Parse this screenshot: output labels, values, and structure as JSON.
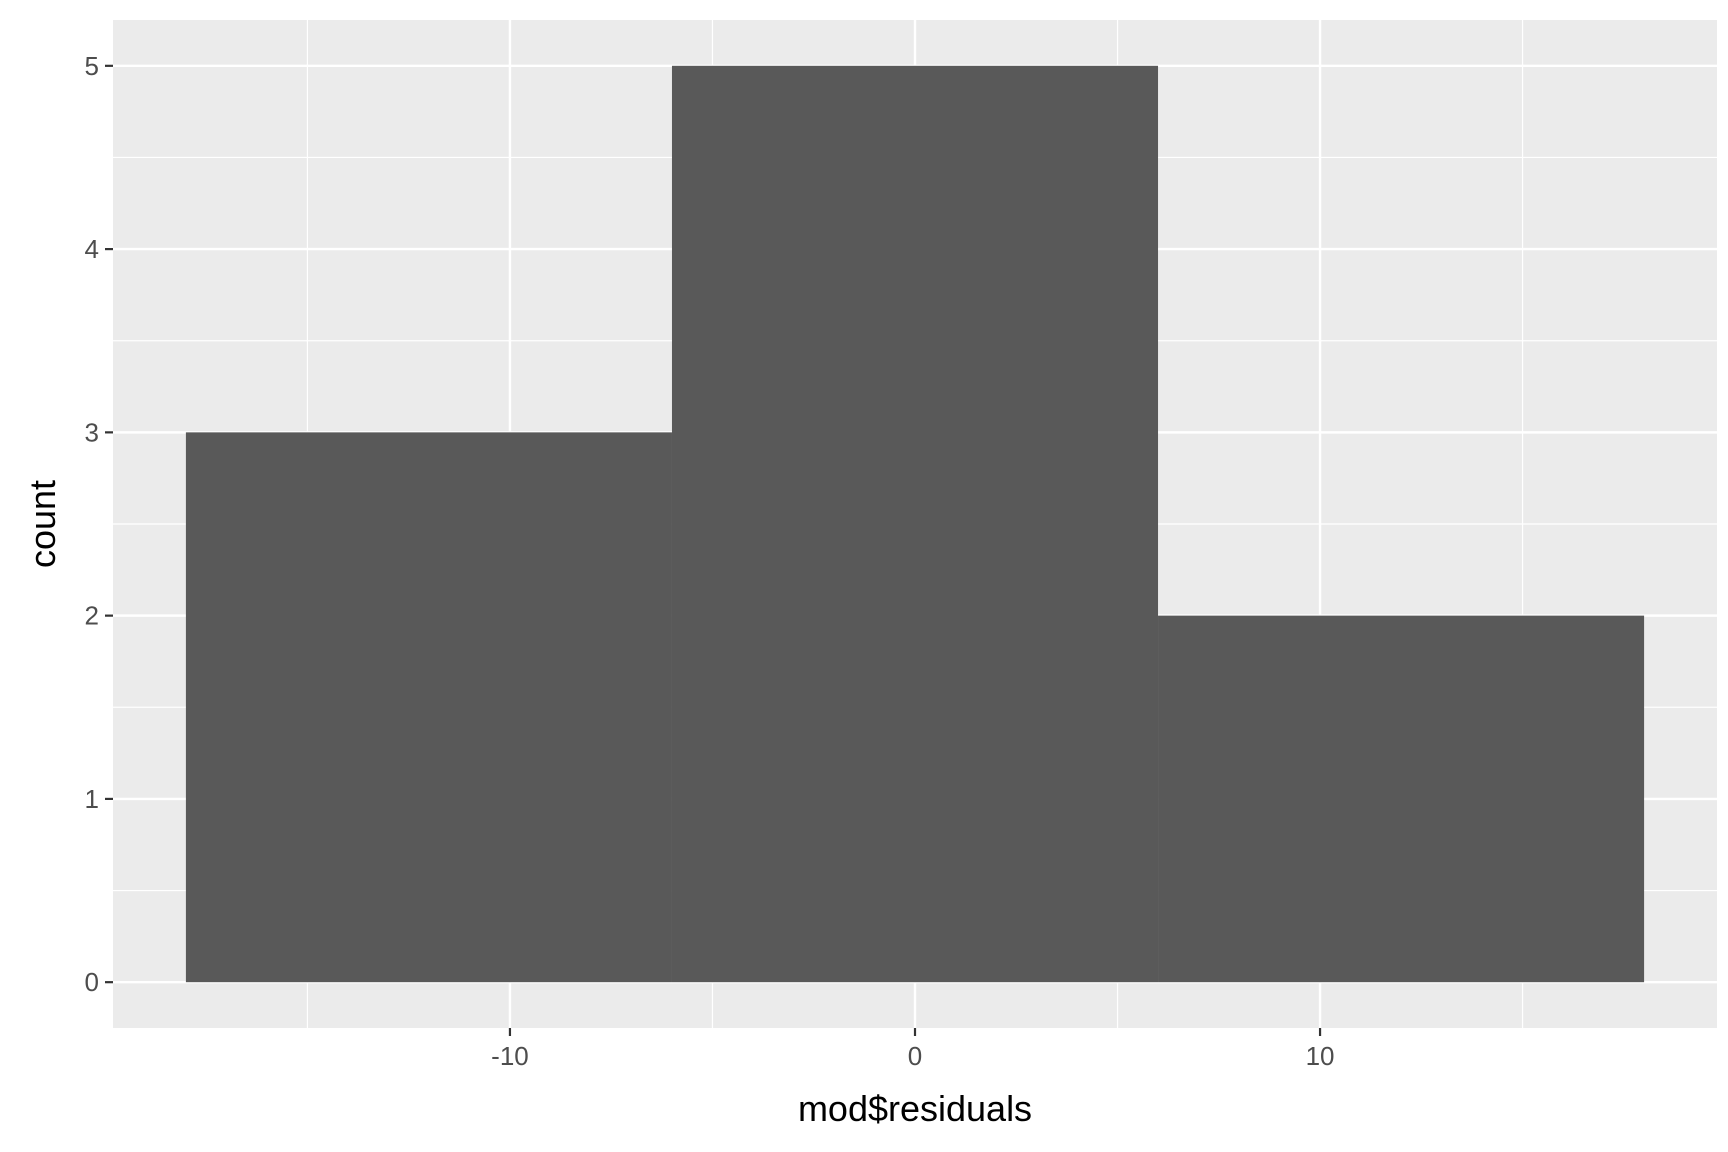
{
  "chart_data": {
    "type": "bar",
    "subtype": "histogram",
    "bins": [
      {
        "x0": -18,
        "x1": -6,
        "count": 3
      },
      {
        "x0": -6,
        "x1": 6,
        "count": 5
      },
      {
        "x0": 6,
        "x1": 18,
        "count": 2
      }
    ],
    "xlabel": "mod$residuals",
    "ylabel": "count",
    "xlim": [
      -19.8,
      19.8
    ],
    "ylim": [
      -0.25,
      5.25
    ],
    "x_ticks": [
      -10,
      0,
      10
    ],
    "x_tick_labels": [
      "-10",
      "0",
      "10"
    ],
    "y_ticks": [
      0,
      1,
      2,
      3,
      4,
      5
    ],
    "y_tick_labels": [
      "0",
      "1",
      "2",
      "3",
      "4",
      "5"
    ],
    "grid": true,
    "legend": false,
    "colors": {
      "panel_background": "#EBEBEB",
      "grid_line": "#FFFFFF",
      "bar_fill": "#595959",
      "tick_text": "#4D4D4D",
      "axis_title": "#000000"
    }
  }
}
